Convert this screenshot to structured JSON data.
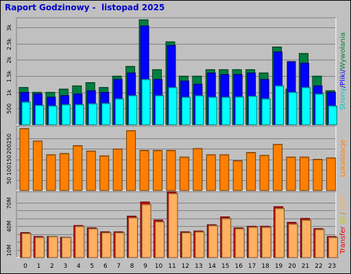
{
  "title": "Raport Godzinowy -  listopad 2025",
  "colors": {
    "background": "#c0c0c0",
    "plot": "#c0c0c0",
    "grid": "#808080",
    "strony": "#00ffff",
    "pliki": "#0000ff",
    "wywolania": "#008040",
    "lokalizacje": "#ff8000",
    "transfer_in": "#ffb060",
    "transfer_out": "#e00000"
  },
  "chart_data": [
    {
      "type": "bar",
      "name": "hits",
      "categories": [
        "0",
        "1",
        "2",
        "3",
        "4",
        "5",
        "6",
        "7",
        "8",
        "9",
        "10",
        "11",
        "12",
        "13",
        "14",
        "15",
        "16",
        "17",
        "18",
        "19",
        "20",
        "21",
        "22",
        "23"
      ],
      "ylim": [
        0,
        3300
      ],
      "yticks": [
        500,
        1000,
        1500,
        2000,
        2500,
        3000
      ],
      "ytick_labels": [
        "500",
        "1k",
        "1.5k",
        "2k",
        "2.5k",
        "3k"
      ],
      "side_label": {
        "parts": [
          {
            "text": "Strony",
            "color": "#00c8c8"
          },
          {
            "text": "/",
            "color": "#0000c8"
          },
          {
            "text": "Pliki",
            "color": "#0000ff"
          },
          {
            "text": "/",
            "color": "#0000c8"
          },
          {
            "text": "Wywołania",
            "color": "#008040"
          }
        ]
      },
      "series": [
        {
          "key": "wywolania",
          "values": [
            1150,
            1000,
            1000,
            1100,
            1200,
            1300,
            1150,
            1500,
            1800,
            3240,
            1700,
            2560,
            1500,
            1500,
            1700,
            1700,
            1700,
            1700,
            1600,
            2400,
            1100,
            2200,
            1500,
            1050
          ]
        },
        {
          "key": "pliki",
          "values": [
            1000,
            950,
            850,
            900,
            950,
            1050,
            1000,
            1400,
            1600,
            3050,
            1400,
            2450,
            1350,
            1250,
            1600,
            1550,
            1550,
            1600,
            1400,
            2250,
            1950,
            1900,
            1200,
            1000
          ]
        },
        {
          "key": "strony",
          "values": [
            700,
            600,
            580,
            620,
            620,
            650,
            660,
            800,
            900,
            1400,
            900,
            1150,
            850,
            900,
            850,
            850,
            860,
            880,
            800,
            1200,
            1000,
            1150,
            950,
            580
          ]
        }
      ]
    },
    {
      "type": "bar",
      "name": "locations",
      "categories": [
        "0",
        "1",
        "2",
        "3",
        "4",
        "5",
        "6",
        "7",
        "8",
        "9",
        "10",
        "11",
        "12",
        "13",
        "14",
        "15",
        "16",
        "17",
        "18",
        "19",
        "20",
        "21",
        "22",
        "23"
      ],
      "ylim": [
        0,
        310
      ],
      "yticks": [
        50,
        100,
        150,
        200,
        250
      ],
      "ytick_labels": [
        "50",
        "100",
        "150",
        "200",
        "250"
      ],
      "side_label": {
        "parts": [
          {
            "text": "Lokalizacje",
            "color": "#ff8000"
          }
        ]
      },
      "series": [
        {
          "key": "lokalizacje",
          "values": [
            298,
            238,
            172,
            178,
            216,
            190,
            167,
            200,
            288,
            193,
            193,
            193,
            161,
            202,
            172,
            172,
            143,
            183,
            169,
            222,
            161,
            161,
            150,
            157
          ]
        }
      ]
    },
    {
      "type": "bar",
      "name": "transfer",
      "categories": [
        "0",
        "1",
        "2",
        "3",
        "4",
        "5",
        "6",
        "7",
        "8",
        "9",
        "10",
        "11",
        "12",
        "13",
        "14",
        "15",
        "16",
        "17",
        "18",
        "19",
        "20",
        "21",
        "22",
        "23"
      ],
      "ylim": [
        0,
        84
      ],
      "yticks": [
        10,
        20,
        30,
        40,
        50,
        60,
        70
      ],
      "ytick_labels": [
        "10M",
        "",
        "",
        "40M",
        "",
        "",
        "70M"
      ],
      "side_label": {
        "parts": [
          {
            "text": "Transfer",
            "color": "#e00000"
          },
          {
            "text": " IN",
            "color": "#c8c800"
          },
          {
            "text": " / ",
            "color": "#c87800"
          },
          {
            "text": "OUT",
            "color": "#ffb060"
          }
        ]
      },
      "series": [
        {
          "key": "transfer_out",
          "values": [
            32,
            27,
            27,
            26,
            41,
            38,
            33,
            33,
            53,
            71,
            48,
            84,
            33,
            34,
            42,
            52,
            38,
            40,
            40,
            65,
            45,
            50,
            37,
            27
          ]
        },
        {
          "key": "transfer_in",
          "values": [
            31,
            26,
            27,
            26,
            40,
            37,
            32,
            32,
            51,
            68,
            46,
            82,
            32,
            33,
            41,
            50,
            37,
            39,
            39,
            63,
            43,
            48,
            36,
            26
          ]
        }
      ]
    }
  ]
}
